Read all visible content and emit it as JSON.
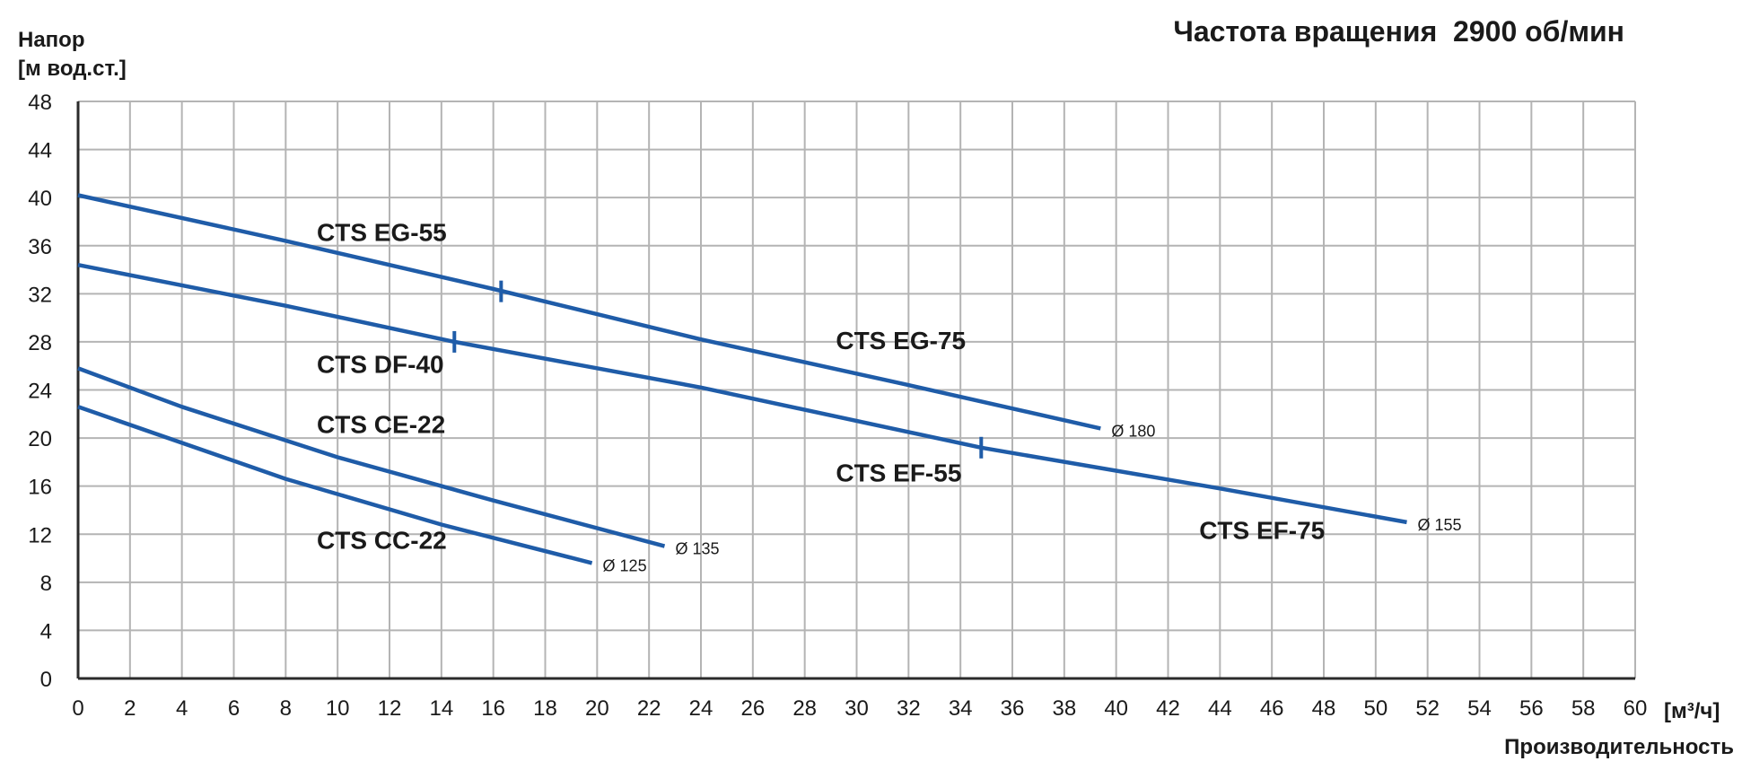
{
  "chart_data": {
    "type": "line",
    "title": "Частота вращения  2900 об/мин",
    "ylabel_line1": "Напор",
    "ylabel_line2": "[м вод.ст.]",
    "xlabel_unit": "[м³/ч]",
    "xlabel": "Производительность",
    "xlim": [
      0,
      60
    ],
    "ylim": [
      0,
      48
    ],
    "x_ticks": [
      0,
      2,
      4,
      6,
      8,
      10,
      12,
      14,
      16,
      18,
      20,
      22,
      24,
      26,
      28,
      30,
      32,
      34,
      36,
      38,
      40,
      42,
      44,
      46,
      48,
      50,
      52,
      54,
      56,
      58,
      60
    ],
    "y_ticks": [
      0,
      4,
      8,
      12,
      16,
      20,
      24,
      28,
      32,
      36,
      40,
      44,
      48
    ],
    "grid": true,
    "curve_color": "#1f5ca8",
    "curves": [
      {
        "id": "eg",
        "points": [
          [
            0,
            40.2
          ],
          [
            8,
            36.4
          ],
          [
            16,
            32.4
          ],
          [
            24,
            28.2
          ],
          [
            32,
            24.4
          ],
          [
            39.4,
            20.8
          ]
        ],
        "diameter": "Ø 180",
        "markers": [
          [
            16.3,
            32.2
          ]
        ]
      },
      {
        "id": "ef",
        "points": [
          [
            0,
            34.4
          ],
          [
            8,
            31.0
          ],
          [
            14.5,
            28.0
          ],
          [
            24,
            24.2
          ],
          [
            34.8,
            19.2
          ],
          [
            44,
            15.8
          ],
          [
            51.2,
            13.0
          ]
        ],
        "diameter": "Ø 155",
        "markers": [
          [
            14.5,
            28.0
          ],
          [
            34.8,
            19.2
          ]
        ]
      },
      {
        "id": "ce",
        "points": [
          [
            0,
            25.8
          ],
          [
            4,
            22.6
          ],
          [
            10,
            18.4
          ],
          [
            16,
            14.8
          ],
          [
            22.6,
            11.0
          ]
        ],
        "diameter": "Ø 135",
        "markers": []
      },
      {
        "id": "cc",
        "points": [
          [
            0,
            22.6
          ],
          [
            8,
            16.6
          ],
          [
            14,
            12.8
          ],
          [
            19.8,
            9.6
          ]
        ],
        "diameter": "Ø 125",
        "markers": []
      }
    ],
    "labels": [
      {
        "text": "CTS EG-55",
        "x": 9.2,
        "y": 36.4
      },
      {
        "text": "CTS EG-75",
        "x": 29.2,
        "y": 27.4
      },
      {
        "text": "CTS DF-40",
        "x": 9.2,
        "y": 25.4
      },
      {
        "text": "CTS CE-22",
        "x": 9.2,
        "y": 20.4
      },
      {
        "text": "CTS EF-55",
        "x": 29.2,
        "y": 16.4
      },
      {
        "text": "CTS CC-22",
        "x": 9.2,
        "y": 10.8
      },
      {
        "text": "CTS EF-75",
        "x": 43.2,
        "y": 11.6
      }
    ]
  }
}
